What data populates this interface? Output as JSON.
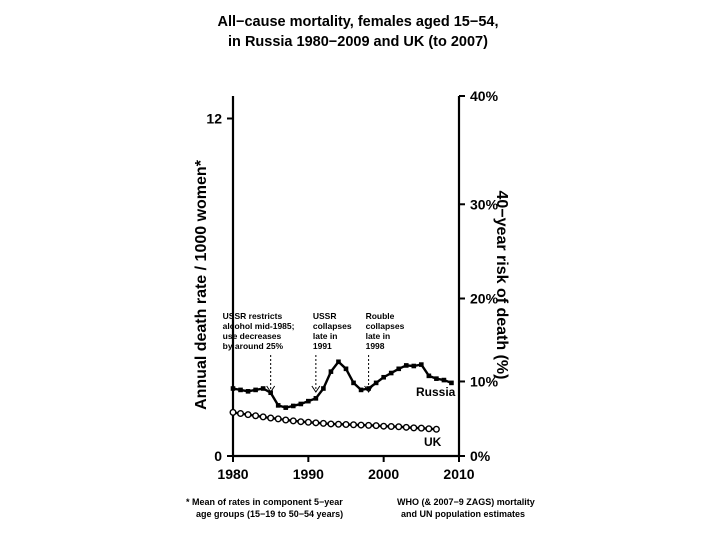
{
  "title_lines": [
    "All−cause mortality, females aged 15−54,",
    "in Russia 1980−2009 and UK (to 2007)"
  ],
  "chart_data": {
    "type": "line",
    "title": "All−cause mortality, females aged 15−54, in Russia 1980−2009 and UK (to 2007)",
    "xlabel": "",
    "ylabel_left": "Annual death rate / 1000 women*",
    "ylabel_right": "40−year risk of death (%)",
    "xlim": [
      1980,
      2010
    ],
    "ylim": [
      0,
      12.8
    ],
    "x_ticks": [
      1980,
      1990,
      2000,
      2010
    ],
    "y_left_ticks": [
      0,
      12
    ],
    "y_right_ticks": [
      {
        "label": "0%",
        "left_value": 0
      },
      {
        "label": "10%",
        "left_value": 2.65
      },
      {
        "label": "20%",
        "left_value": 5.6
      },
      {
        "label": "30%",
        "left_value": 8.95
      },
      {
        "label": "40%",
        "left_value": 12.8
      }
    ],
    "grid": false,
    "series": [
      {
        "name": "Russia",
        "marker": "filled-square",
        "x": [
          1980,
          1981,
          1982,
          1983,
          1984,
          1985,
          1986,
          1987,
          1988,
          1989,
          1990,
          1991,
          1992,
          1993,
          1994,
          1995,
          1996,
          1997,
          1998,
          1999,
          2000,
          2001,
          2002,
          2003,
          2004,
          2005,
          2006,
          2007,
          2008,
          2009
        ],
        "values": [
          2.4,
          2.35,
          2.3,
          2.35,
          2.4,
          2.25,
          1.8,
          1.72,
          1.78,
          1.85,
          1.95,
          2.05,
          2.4,
          3.0,
          3.35,
          3.1,
          2.6,
          2.35,
          2.4,
          2.6,
          2.8,
          2.95,
          3.1,
          3.22,
          3.2,
          3.25,
          2.85,
          2.75,
          2.7,
          2.6
        ]
      },
      {
        "name": "UK",
        "marker": "open-circle",
        "x": [
          1980,
          1981,
          1982,
          1983,
          1984,
          1985,
          1986,
          1987,
          1988,
          1989,
          1990,
          1991,
          1992,
          1993,
          1994,
          1995,
          1996,
          1997,
          1998,
          1999,
          2000,
          2001,
          2002,
          2003,
          2004,
          2005,
          2006,
          2007
        ],
        "values": [
          1.55,
          1.51,
          1.47,
          1.43,
          1.39,
          1.35,
          1.32,
          1.28,
          1.25,
          1.22,
          1.2,
          1.18,
          1.16,
          1.14,
          1.13,
          1.12,
          1.11,
          1.1,
          1.09,
          1.08,
          1.06,
          1.05,
          1.04,
          1.02,
          1.0,
          0.99,
          0.97,
          0.95
        ]
      }
    ],
    "annotations": [
      {
        "lines": [
          "USSR restricts",
          "alcohol mid-1985;",
          "use decreases",
          "by around 25%"
        ],
        "arrow_x": 1985
      },
      {
        "lines": [
          "USSR",
          "collapses",
          "late in",
          "1991"
        ],
        "arrow_x": 1991
      },
      {
        "lines": [
          "Rouble",
          "collapses",
          "late in",
          "1998"
        ],
        "arrow_x": 1998
      }
    ]
  },
  "footnotes": {
    "left": [
      "* Mean of rates in component 5−year",
      "age groups (15−19 to 50−54 years)"
    ],
    "right": [
      "WHO (& 2007−9 ZAGS) mortality",
      "and UN population estimates"
    ]
  },
  "colors": {
    "line": "#000000",
    "marker_fill_open": "#ffffff",
    "background": "#ffffff"
  }
}
